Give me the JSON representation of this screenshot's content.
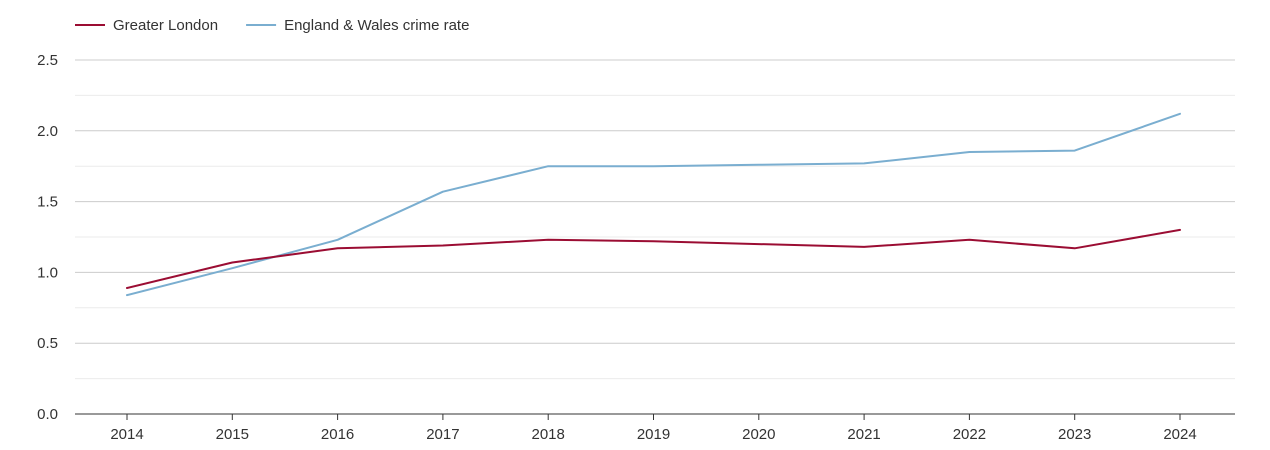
{
  "chart_data": {
    "type": "line",
    "title": "",
    "xlabel": "",
    "ylabel": "",
    "x": [
      "2014",
      "2015",
      "2016",
      "2017",
      "2018",
      "2019",
      "2020",
      "2021",
      "2022",
      "2023",
      "2024"
    ],
    "ylim": [
      0,
      2.5
    ],
    "yticks": [
      "0.0",
      "0.5",
      "1.0",
      "1.5",
      "2.0",
      "2.5"
    ],
    "grid": true,
    "legend_position": "top-left",
    "series": [
      {
        "name": "Greater London",
        "color": "#9b0d33",
        "values": [
          0.89,
          1.07,
          1.17,
          1.19,
          1.23,
          1.22,
          1.2,
          1.18,
          1.23,
          1.17,
          1.3
        ]
      },
      {
        "name": "England & Wales crime rate",
        "color": "#7aaed0",
        "values": [
          0.84,
          1.03,
          1.23,
          1.57,
          1.75,
          1.75,
          1.76,
          1.77,
          1.85,
          1.86,
          2.12
        ]
      }
    ]
  }
}
